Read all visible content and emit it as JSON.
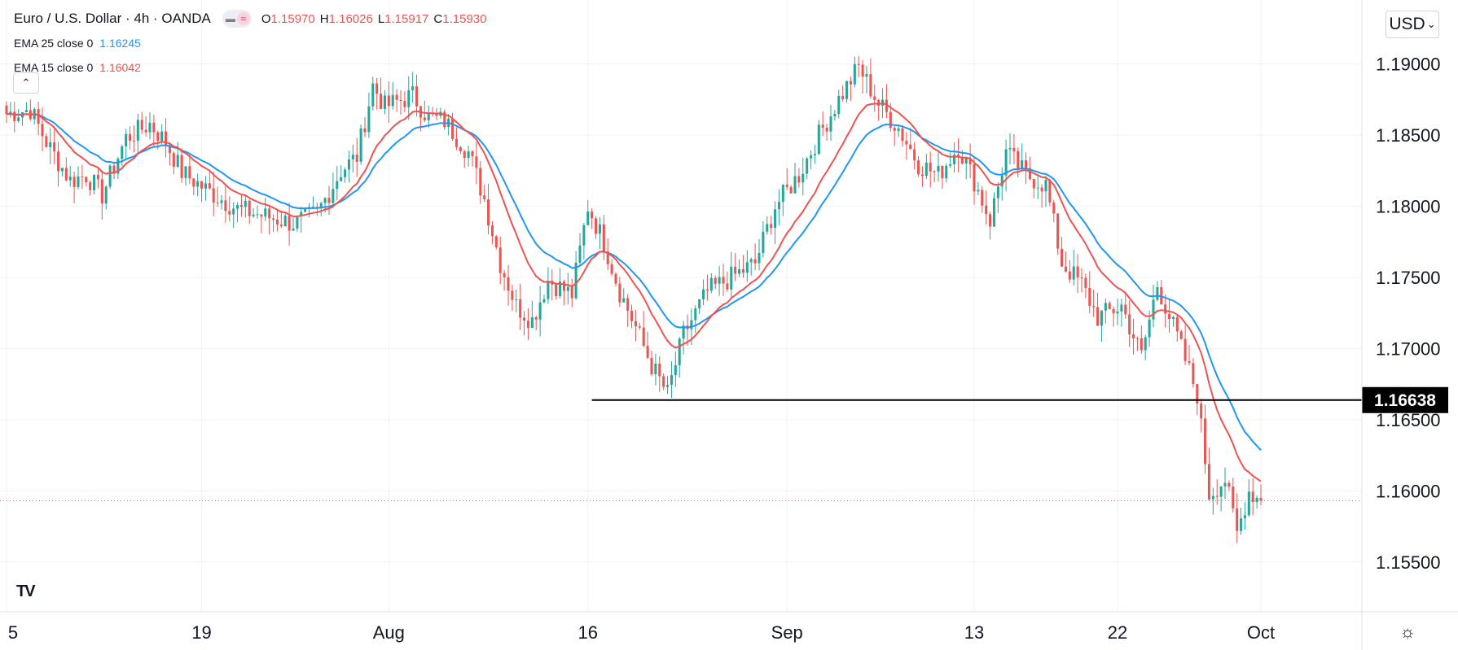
{
  "header": {
    "symbol_title": "Euro / U.S. Dollar · 4h · OANDA",
    "ohlc": [
      {
        "key": "O",
        "value": "1.15970"
      },
      {
        "key": "H",
        "value": "1.16026"
      },
      {
        "key": "L",
        "value": "1.15917"
      },
      {
        "key": "C",
        "value": "1.15930"
      }
    ]
  },
  "indicators": [
    {
      "label": "EMA 25 close 0",
      "value": "1.16245",
      "color": "#2196f3"
    },
    {
      "label": "EMA 15 close 0",
      "value": "1.16042",
      "color": "#ef5350"
    }
  ],
  "currency": "USD",
  "logo": "TV",
  "icons": {
    "collapse": "chevron-up-icon",
    "settings": "gear-icon",
    "menu": "chevron-down-icon"
  },
  "colors": {
    "up": "#26a69a",
    "down": "#ef5350",
    "ema25": "#2196f3",
    "ema15": "#ef5350",
    "grid": "#f0f3fa",
    "text": "#131722",
    "level": "#000000"
  },
  "chart_data": {
    "type": "candlestick",
    "title": "Euro / U.S. Dollar, 4h, OANDA",
    "xlabel": "",
    "ylabel": "USD",
    "x_tick_labels": [
      "5",
      "19",
      "Aug",
      "16",
      "Sep",
      "13",
      "22",
      "Oct"
    ],
    "y_tick_labels": [
      "1.15500",
      "1.16000",
      "1.16500",
      "1.17000",
      "1.17500",
      "1.18000",
      "1.18500",
      "1.19000"
    ],
    "y_ticks": [
      1.155,
      1.16,
      1.165,
      1.17,
      1.175,
      1.18,
      1.185,
      1.19
    ],
    "ylim": [
      1.1515,
      1.1945
    ],
    "x_index_range": [
      0,
      315
    ],
    "x_tick_index": [
      0,
      49,
      96,
      146,
      196,
      243,
      279,
      315
    ],
    "horizontal_level": {
      "value": 1.16638,
      "label": "1.16638",
      "from_index": 147
    },
    "last_price": 1.1593,
    "series_path": [
      [
        0,
        1.1865
      ],
      [
        6,
        1.1868
      ],
      [
        10,
        1.1845
      ],
      [
        16,
        1.1818
      ],
      [
        20,
        1.1822
      ],
      [
        24,
        1.1808
      ],
      [
        30,
        1.1848
      ],
      [
        36,
        1.1858
      ],
      [
        40,
        1.1845
      ],
      [
        44,
        1.1824
      ],
      [
        50,
        1.1812
      ],
      [
        58,
        1.1798
      ],
      [
        65,
        1.1793
      ],
      [
        72,
        1.1788
      ],
      [
        78,
        1.1795
      ],
      [
        84,
        1.1825
      ],
      [
        88,
        1.1835
      ],
      [
        92,
        1.1885
      ],
      [
        95,
        1.187
      ],
      [
        102,
        1.1878
      ],
      [
        106,
        1.1862
      ],
      [
        110,
        1.186
      ],
      [
        116,
        1.1838
      ],
      [
        120,
        1.1805
      ],
      [
        124,
        1.176
      ],
      [
        128,
        1.173
      ],
      [
        132,
        1.172
      ],
      [
        136,
        1.1748
      ],
      [
        142,
        1.1738
      ],
      [
        146,
        1.18
      ],
      [
        150,
        1.1775
      ],
      [
        154,
        1.174
      ],
      [
        158,
        1.1715
      ],
      [
        162,
        1.1688
      ],
      [
        166,
        1.1668
      ],
      [
        170,
        1.171
      ],
      [
        176,
        1.174
      ],
      [
        182,
        1.175
      ],
      [
        188,
        1.176
      ],
      [
        193,
        1.18
      ],
      [
        199,
        1.1822
      ],
      [
        204,
        1.185
      ],
      [
        209,
        1.1875
      ],
      [
        214,
        1.1898
      ],
      [
        219,
        1.1872
      ],
      [
        224,
        1.1855
      ],
      [
        229,
        1.183
      ],
      [
        234,
        1.1822
      ],
      [
        239,
        1.1842
      ],
      [
        243,
        1.1818
      ],
      [
        247,
        1.179
      ],
      [
        251,
        1.1838
      ],
      [
        256,
        1.1822
      ],
      [
        261,
        1.1815
      ],
      [
        265,
        1.176
      ],
      [
        270,
        1.1745
      ],
      [
        274,
        1.1722
      ],
      [
        280,
        1.173
      ],
      [
        285,
        1.1695
      ],
      [
        289,
        1.1745
      ],
      [
        294,
        1.1708
      ],
      [
        299,
        1.1668
      ],
      [
        302,
        1.1598
      ],
      [
        306,
        1.1608
      ],
      [
        309,
        1.157
      ],
      [
        312,
        1.16
      ],
      [
        315,
        1.1593
      ]
    ],
    "series": [
      {
        "name": "EMA 25 close 0",
        "last_value": 1.16245,
        "color": "#2196f3"
      },
      {
        "name": "EMA 15 close 0",
        "last_value": 1.16042,
        "color": "#ef5350"
      }
    ]
  }
}
